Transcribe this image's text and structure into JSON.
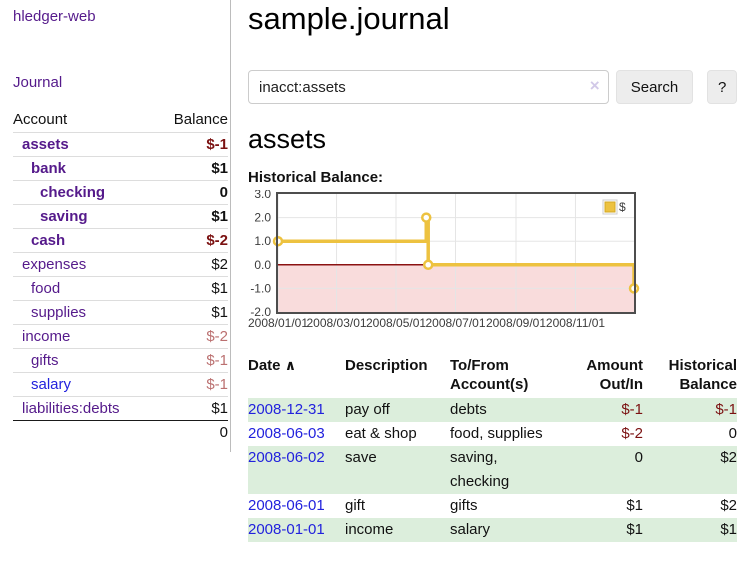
{
  "sidebar": {
    "brand": "hledger-web",
    "nav": {
      "journal": "Journal"
    },
    "accounts_table": {
      "headers": {
        "account": "Account",
        "balance": "Balance"
      },
      "rows": [
        {
          "name": "assets",
          "balance": "$-1"
        },
        {
          "name": "bank",
          "balance": "$1"
        },
        {
          "name": "checking",
          "balance": "0"
        },
        {
          "name": "saving",
          "balance": "$1"
        },
        {
          "name": "cash",
          "balance": "$-2"
        },
        {
          "name": "expenses",
          "balance": "$2"
        },
        {
          "name": "food",
          "balance": "$1"
        },
        {
          "name": "supplies",
          "balance": "$1"
        },
        {
          "name": "income",
          "balance": "$-2"
        },
        {
          "name": "gifts",
          "balance": "$-1"
        },
        {
          "name": "salary",
          "balance": "$-1"
        },
        {
          "name": "liabilities:debts",
          "balance": "$1"
        }
      ],
      "total": "0"
    }
  },
  "header": {
    "title": "sample.journal"
  },
  "search": {
    "value": "inacct:assets",
    "clear_icon": "×",
    "button_label": "Search",
    "help_label": "?"
  },
  "account_page": {
    "title": "assets",
    "chart_label": "Historical Balance:"
  },
  "chart_data": {
    "type": "line",
    "step": true,
    "title": "Historical Balance of assets",
    "series": [
      {
        "name": "$",
        "color": "#edc240",
        "points": [
          {
            "date": "2008-01-01",
            "day": 0,
            "value": 1
          },
          {
            "date": "2008-06-01",
            "day": 152,
            "value": 2
          },
          {
            "date": "2008-06-03",
            "day": 154,
            "value": 0
          },
          {
            "date": "2008-12-31",
            "day": 365,
            "value": -1
          }
        ]
      }
    ],
    "x_ticks": [
      {
        "label": "2008/01/01",
        "day": 0
      },
      {
        "label": "2008/03/01",
        "day": 60
      },
      {
        "label": "2008/05/01",
        "day": 121
      },
      {
        "label": "2008/07/01",
        "day": 182
      },
      {
        "label": "2008/09/01",
        "day": 244
      },
      {
        "label": "2008/11/01",
        "day": 305
      }
    ],
    "y_ticks": [
      "3.0",
      "2.0",
      "1.0",
      "0.0",
      "-1.0",
      "-2.0"
    ],
    "ylim": [
      -2,
      3
    ],
    "x_range_days": [
      0,
      365
    ],
    "legend_position": "top-right",
    "grid": true,
    "colors": {
      "negative_region": "#f9dcdc",
      "zero_line": "#8b1212",
      "gridline": "#e5e5e5",
      "plot_border": "#4d4d4d",
      "marker_fill": "#ffffff",
      "legend_swatch_border": "#d3a823"
    }
  },
  "register_table": {
    "headers": {
      "date": "Date",
      "sort_indicator": "∧",
      "description": "Description",
      "account": "To/From Account(s)",
      "amount": "Amount Out/In",
      "balance": "Historical Balance"
    },
    "rows": [
      {
        "date": "2008-12-31",
        "description": "pay off",
        "account": "debts",
        "amount": "$-1",
        "balance": "$-1"
      },
      {
        "date": "2008-06-03",
        "description": "eat & shop",
        "account": "food, supplies",
        "amount": "$-2",
        "balance": "0"
      },
      {
        "date": "2008-06-02",
        "description": "save",
        "account": "saving,\nchecking",
        "amount": "0",
        "balance": "$2"
      },
      {
        "date": "2008-06-01",
        "description": "gift",
        "account": "gifts",
        "amount": "$1",
        "balance": "$2"
      },
      {
        "date": "2008-01-01",
        "description": "income",
        "account": "salary",
        "amount": "$1",
        "balance": "$1"
      }
    ]
  }
}
